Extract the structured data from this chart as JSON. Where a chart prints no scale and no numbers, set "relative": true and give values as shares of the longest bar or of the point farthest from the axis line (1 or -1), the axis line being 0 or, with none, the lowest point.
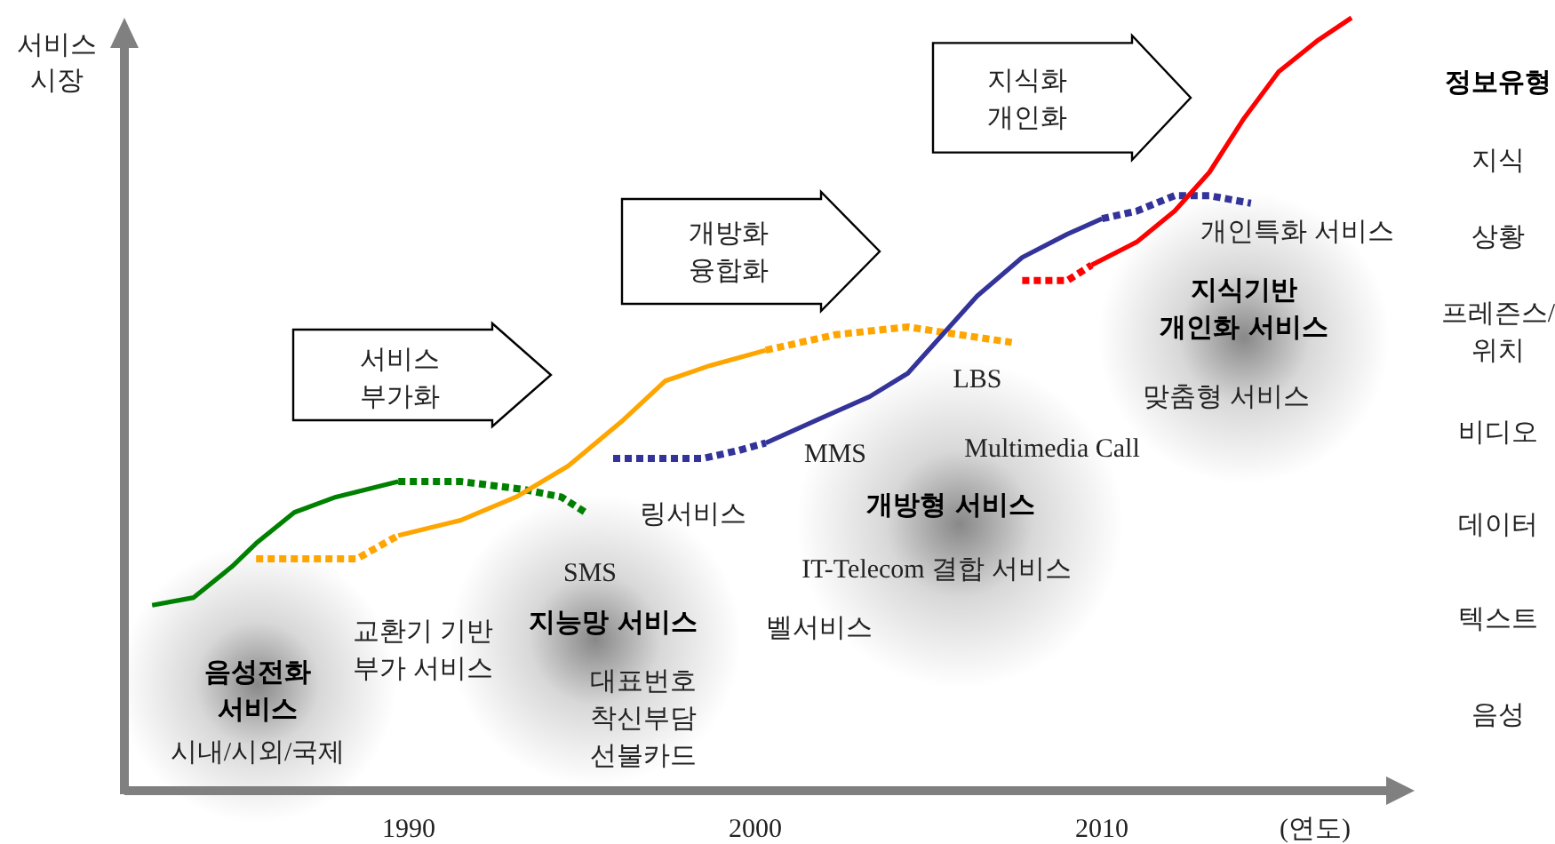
{
  "chart_data": {
    "type": "line",
    "relative": true,
    "ylabel": "서비스 시장",
    "xlabel": "(연도)",
    "xlim": [
      1981.8,
      2018.2
    ],
    "xticks": [
      1990,
      2000,
      2010
    ],
    "series": [
      {
        "color": "#008000",
        "line_style": "solid",
        "x": [
          1982.6,
          1983.8,
          1984.9,
          1985.6,
          1986.7,
          1987.9,
          1989.7
        ],
        "values": [
          0.24,
          0.25,
          0.29,
          0.32,
          0.36,
          0.38,
          0.4
        ]
      },
      {
        "color": "#008000",
        "line_style": "dotted",
        "x": [
          1989.7,
          1991.5,
          1993.3,
          1994.4,
          1995.1
        ],
        "values": [
          0.4,
          0.4,
          0.39,
          0.38,
          0.36
        ]
      },
      {
        "color": "#ffa500",
        "line_style": "dotted",
        "x": [
          1985.6,
          1986.9,
          1988.5,
          1989.7
        ],
        "values": [
          0.3,
          0.3,
          0.3,
          0.33
        ]
      },
      {
        "color": "#ffa500",
        "line_style": "solid",
        "x": [
          1989.7,
          1991.5,
          1993.1,
          1994.6,
          1996.2,
          1997.4,
          1998.7,
          2000.3
        ],
        "values": [
          0.33,
          0.35,
          0.38,
          0.42,
          0.48,
          0.53,
          0.55,
          0.57
        ]
      },
      {
        "color": "#ffa500",
        "line_style": "dotted",
        "x": [
          2000.3,
          2002.3,
          2004.4,
          2005.9,
          2007.4
        ],
        "values": [
          0.57,
          0.59,
          0.6,
          0.59,
          0.58
        ]
      },
      {
        "color": "#333399",
        "line_style": "dotted",
        "x": [
          1995.9,
          1997.2,
          1998.5,
          1999.5,
          2000.3
        ],
        "values": [
          0.43,
          0.43,
          0.43,
          0.44,
          0.45
        ]
      },
      {
        "color": "#333399",
        "line_style": "solid",
        "x": [
          2000.3,
          2001.8,
          2003.3,
          2004.4,
          2005.4,
          2006.4,
          2007.7,
          2009.0,
          2010.0
        ],
        "values": [
          0.45,
          0.48,
          0.51,
          0.54,
          0.59,
          0.64,
          0.69,
          0.72,
          0.74
        ]
      },
      {
        "color": "#333399",
        "line_style": "dotted",
        "x": [
          2010.0,
          2011.0,
          2012.1,
          2013.1,
          2014.3
        ],
        "values": [
          0.74,
          0.75,
          0.77,
          0.77,
          0.76
        ]
      },
      {
        "color": "#ff0000",
        "line_style": "dotted",
        "x": [
          2007.7,
          2009.0,
          2009.7
        ],
        "values": [
          0.66,
          0.66,
          0.68
        ]
      },
      {
        "color": "#ff0000",
        "line_style": "solid",
        "x": [
          2009.7,
          2011.0,
          2012.1,
          2013.1,
          2014.1,
          2015.1,
          2016.2,
          2017.2
        ],
        "values": [
          0.68,
          0.71,
          0.75,
          0.8,
          0.87,
          0.93,
          0.97,
          1
        ]
      }
    ],
    "annotations": [
      "서비스 부가화",
      "개방화 융합화",
      "지식화 개인화",
      "음성전화 서비스",
      "시내/시외/국제",
      "교환기 기반 부가 서비스",
      "SMS",
      "지능망 서비스",
      "대표번호 착신부담 선불카드",
      "링서비스",
      "벨서비스",
      "MMS",
      "Multimedia Call",
      "LBS",
      "개방형 서비스",
      "IT-Telecom 결합 서비스",
      "개인특화 서비스",
      "지식기반 개인화 서비스",
      "맞춤형 서비스",
      "정보유형",
      "지식",
      "상황",
      "프레즌스/위치",
      "비디오",
      "데이터",
      "텍스트",
      "음성"
    ]
  }
}
